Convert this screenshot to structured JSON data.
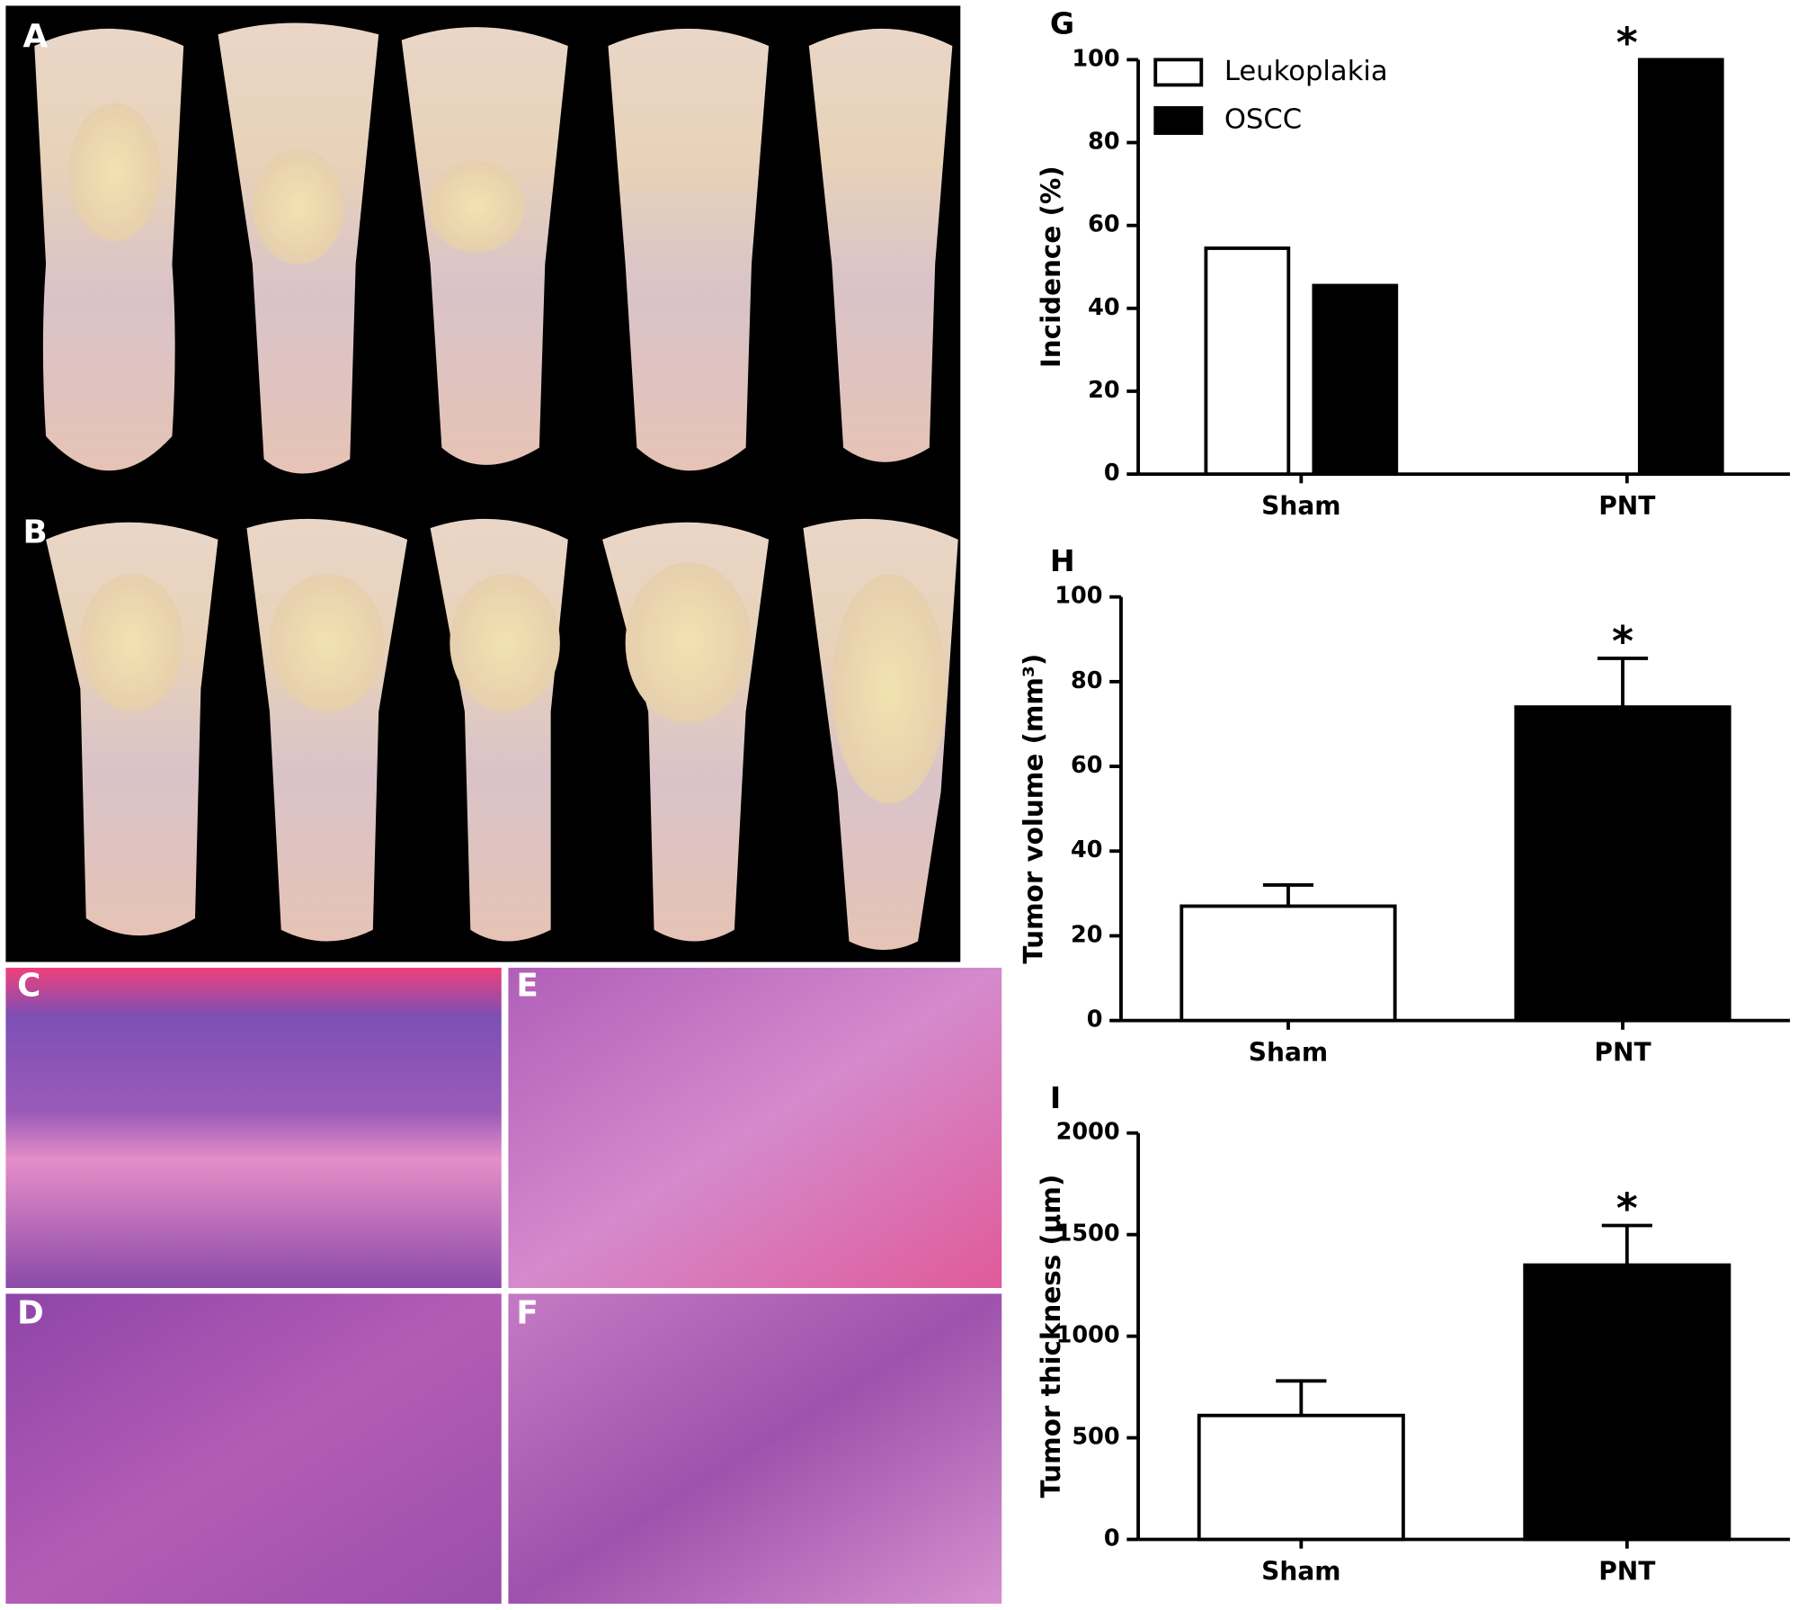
{
  "panels": [
    "A",
    "B",
    "C",
    "D",
    "E",
    "F"
  ],
  "chart_data": [
    {
      "type": "bar",
      "label": "G",
      "ylabel": "Incidence (%)",
      "categories": [
        "Sham",
        "PNT"
      ],
      "series": [
        {
          "name": "Leukoplakia",
          "color": "#ffffff",
          "values": [
            54.5,
            0
          ]
        },
        {
          "name": "OSCC",
          "color": "#000000",
          "values": [
            45.5,
            100
          ]
        }
      ],
      "ylim": [
        0,
        100
      ],
      "yticks": [
        0,
        20,
        40,
        60,
        80,
        100
      ],
      "annotation": "*",
      "legend": "top-left"
    },
    {
      "type": "errorbar",
      "label": "H",
      "ylabel": "Tumor volume (mm³)",
      "categories": [
        "Sham",
        "PNT"
      ],
      "values": [
        27,
        74
      ],
      "errors": [
        5,
        11.5
      ],
      "colors": [
        "#ffffff",
        "#000000"
      ],
      "ylim": [
        0,
        100
      ],
      "yticks": [
        0,
        20,
        40,
        60,
        80,
        100
      ],
      "annotation": "*"
    },
    {
      "type": "errorbar",
      "label": "I",
      "ylabel": "Tumor thickness (μm)",
      "categories": [
        "Sham",
        "PNT"
      ],
      "values": [
        610,
        1350
      ],
      "errors": [
        170,
        195
      ],
      "colors": [
        "#ffffff",
        "#000000"
      ],
      "ylim": [
        0,
        2000
      ],
      "yticks": [
        0,
        500,
        1000,
        1500,
        2000
      ],
      "annotation": "*"
    }
  ]
}
